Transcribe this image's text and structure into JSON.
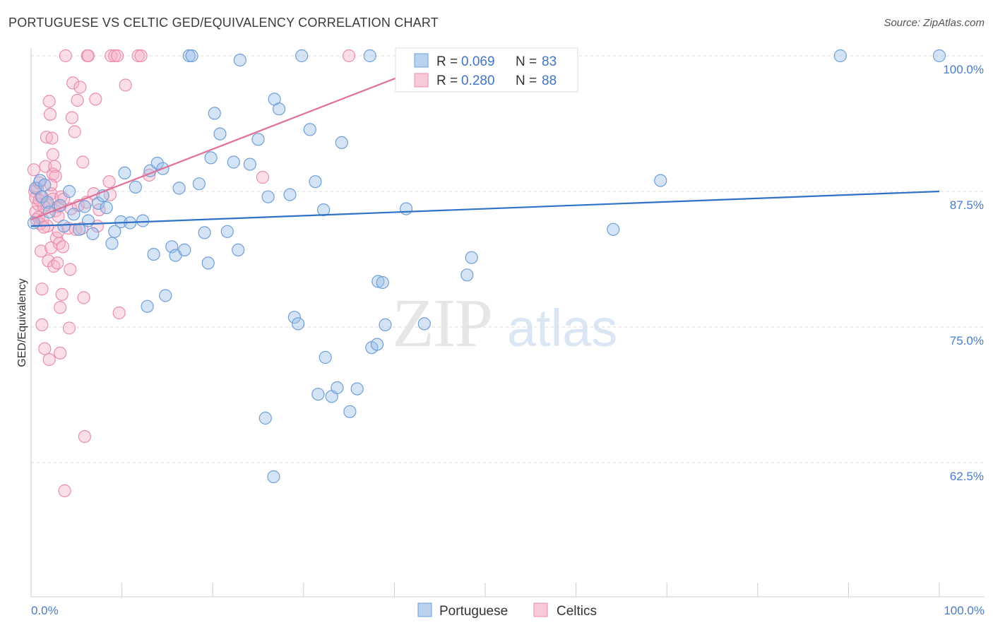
{
  "title": "PORTUGUESE VS CELTIC GED/EQUIVALENCY CORRELATION CHART",
  "source": "Source: ZipAtlas.com",
  "watermark": {
    "zip": "ZIP",
    "atlas": "atlas"
  },
  "colors": {
    "portuguese_fill": "#9bbfe8",
    "portuguese_stroke": "#6f9fd8",
    "portuguese_line": "#2f72c8",
    "celtics_fill": "#f5b2c8",
    "celtics_stroke": "#e98eae",
    "celtics_line": "#e0709a",
    "grid": "#dddddd",
    "axis_tick_text": "#4a7cc9"
  },
  "chart_data": {
    "type": "scatter",
    "title": "PORTUGUESE VS CELTIC GED/EQUIVALENCY CORRELATION CHART",
    "xlabel": "",
    "ylabel": "GED/Equivalency",
    "xlim": [
      0,
      100
    ],
    "ylim": [
      52.5,
      101.5
    ],
    "x_tick_labels": [
      "0.0%",
      "100.0%"
    ],
    "y_ticks": [
      62.5,
      75.0,
      87.5,
      100.0
    ],
    "y_tick_labels": [
      "62.5%",
      "75.0%",
      "87.5%",
      "100.0%"
    ],
    "grid": true,
    "legend": [
      {
        "name": "Portuguese",
        "r_label": "R =",
        "r": "0.069",
        "n_label": "N =",
        "n": "83"
      },
      {
        "name": "Celtics",
        "r_label": "R =",
        "r": "0.280",
        "n_label": "N =",
        "n": "88"
      }
    ],
    "series": [
      {
        "name": "Portuguese",
        "trend": {
          "x": [
            0,
            100
          ],
          "y": [
            84.3,
            87.5
          ]
        },
        "points": [
          [
            0.3,
            84.6
          ],
          [
            0.5,
            87.8
          ],
          [
            1.0,
            88.5
          ],
          [
            1.2,
            87.0
          ],
          [
            1.8,
            86.5
          ],
          [
            2.0,
            85.6
          ],
          [
            3.2,
            86.2
          ],
          [
            3.6,
            84.3
          ],
          [
            4.2,
            87.5
          ],
          [
            4.7,
            85.4
          ],
          [
            5.3,
            84.0
          ],
          [
            5.9,
            86.1
          ],
          [
            6.3,
            84.8
          ],
          [
            6.8,
            83.6
          ],
          [
            7.4,
            86.4
          ],
          [
            7.9,
            87.1
          ],
          [
            8.3,
            86.0
          ],
          [
            8.9,
            82.7
          ],
          [
            9.2,
            83.8
          ],
          [
            9.9,
            84.7
          ],
          [
            10.3,
            89.2
          ],
          [
            10.9,
            84.6
          ],
          [
            11.5,
            87.9
          ],
          [
            12.3,
            84.8
          ],
          [
            12.8,
            76.9
          ],
          [
            13.1,
            89.4
          ],
          [
            13.5,
            81.7
          ],
          [
            13.9,
            90.1
          ],
          [
            14.5,
            89.6
          ],
          [
            14.8,
            77.9
          ],
          [
            15.5,
            82.4
          ],
          [
            15.9,
            81.6
          ],
          [
            16.3,
            87.8
          ],
          [
            16.9,
            82.1
          ],
          [
            17.4,
            100.0
          ],
          [
            17.7,
            100.0
          ],
          [
            18.5,
            88.2
          ],
          [
            19.1,
            83.7
          ],
          [
            19.5,
            80.9
          ],
          [
            19.8,
            90.6
          ],
          [
            20.2,
            94.7
          ],
          [
            20.8,
            92.8
          ],
          [
            21.6,
            83.8
          ],
          [
            22.3,
            90.2
          ],
          [
            22.8,
            82.1
          ],
          [
            23.0,
            99.6
          ],
          [
            24.1,
            90.0
          ],
          [
            25.0,
            92.3
          ],
          [
            25.8,
            66.6
          ],
          [
            26.1,
            87.0
          ],
          [
            26.7,
            61.2
          ],
          [
            26.8,
            96.0
          ],
          [
            27.3,
            95.1
          ],
          [
            28.5,
            87.2
          ],
          [
            29.0,
            75.9
          ],
          [
            29.4,
            75.3
          ],
          [
            29.8,
            100.0
          ],
          [
            30.7,
            93.2
          ],
          [
            31.3,
            88.4
          ],
          [
            31.6,
            68.8
          ],
          [
            32.2,
            85.8
          ],
          [
            32.4,
            72.2
          ],
          [
            33.1,
            68.6
          ],
          [
            33.7,
            69.4
          ],
          [
            34.2,
            92.0
          ],
          [
            35.1,
            67.2
          ],
          [
            35.9,
            69.3
          ],
          [
            37.3,
            100.0
          ],
          [
            37.5,
            73.1
          ],
          [
            38.1,
            73.4
          ],
          [
            38.2,
            79.2
          ],
          [
            38.7,
            79.1
          ],
          [
            39.0,
            75.2
          ],
          [
            41.3,
            85.9
          ],
          [
            43.3,
            75.3
          ],
          [
            45.7,
            100.0
          ],
          [
            48.0,
            79.8
          ],
          [
            48.5,
            81.4
          ],
          [
            64.1,
            84.0
          ],
          [
            69.3,
            88.5
          ],
          [
            89.1,
            100.0
          ],
          [
            100.0,
            100.0
          ],
          [
            1.5,
            88.1
          ]
        ]
      },
      {
        "name": "Celtics",
        "trend": {
          "x": [
            0,
            46.5
          ],
          "y": [
            84.9,
            100.0
          ]
        },
        "points": [
          [
            0.3,
            89.5
          ],
          [
            0.4,
            87.5
          ],
          [
            0.5,
            86.9
          ],
          [
            0.5,
            85.6
          ],
          [
            0.6,
            84.9
          ],
          [
            0.7,
            87.8
          ],
          [
            0.8,
            86.3
          ],
          [
            0.8,
            85.1
          ],
          [
            0.9,
            88.3
          ],
          [
            1.0,
            84.5
          ],
          [
            1.1,
            87.0
          ],
          [
            1.1,
            82.0
          ],
          [
            1.2,
            78.5
          ],
          [
            1.2,
            75.2
          ],
          [
            1.3,
            84.9
          ],
          [
            1.4,
            86.1
          ],
          [
            1.5,
            73.0
          ],
          [
            1.6,
            89.8
          ],
          [
            1.7,
            92.5
          ],
          [
            1.7,
            86.3
          ],
          [
            1.8,
            84.3
          ],
          [
            1.9,
            81.1
          ],
          [
            2.0,
            72.0
          ],
          [
            2.0,
            95.8
          ],
          [
            2.1,
            94.6
          ],
          [
            2.2,
            87.3
          ],
          [
            2.2,
            82.3
          ],
          [
            2.3,
            92.4
          ],
          [
            2.4,
            90.9
          ],
          [
            2.4,
            89.1
          ],
          [
            2.4,
            86.8
          ],
          [
            2.5,
            80.6
          ],
          [
            2.6,
            89.8
          ],
          [
            2.7,
            88.9
          ],
          [
            2.7,
            85.7
          ],
          [
            2.8,
            83.2
          ],
          [
            2.9,
            80.9
          ],
          [
            3.0,
            86.1
          ],
          [
            3.0,
            83.8
          ],
          [
            3.1,
            82.7
          ],
          [
            3.2,
            72.6
          ],
          [
            3.2,
            76.8
          ],
          [
            3.3,
            87.0
          ],
          [
            3.4,
            78.0
          ],
          [
            3.5,
            82.4
          ],
          [
            3.6,
            86.8
          ],
          [
            3.7,
            59.9
          ],
          [
            3.8,
            100.0
          ],
          [
            4.1,
            84.1
          ],
          [
            4.2,
            74.9
          ],
          [
            4.3,
            80.3
          ],
          [
            4.4,
            85.9
          ],
          [
            4.5,
            94.3
          ],
          [
            4.6,
            97.5
          ],
          [
            4.8,
            93.0
          ],
          [
            4.9,
            84.0
          ],
          [
            5.1,
            95.9
          ],
          [
            5.2,
            86.2
          ],
          [
            5.4,
            97.1
          ],
          [
            5.6,
            84.1
          ],
          [
            5.7,
            90.2
          ],
          [
            5.8,
            77.7
          ],
          [
            5.9,
            64.9
          ],
          [
            6.1,
            86.5
          ],
          [
            6.2,
            100.0
          ],
          [
            6.3,
            100.0
          ],
          [
            6.9,
            87.3
          ],
          [
            7.1,
            96.0
          ],
          [
            7.3,
            84.3
          ],
          [
            7.5,
            85.8
          ],
          [
            8.6,
            88.4
          ],
          [
            8.7,
            87.2
          ],
          [
            8.8,
            100.0
          ],
          [
            9.2,
            100.0
          ],
          [
            9.5,
            100.0
          ],
          [
            9.7,
            76.3
          ],
          [
            10.4,
            97.3
          ],
          [
            11.8,
            100.0
          ],
          [
            12.1,
            100.0
          ],
          [
            13.0,
            89.0
          ],
          [
            25.5,
            88.8
          ],
          [
            35.0,
            100.0
          ],
          [
            44.5,
            100.0
          ],
          [
            46.7,
            100.0
          ],
          [
            0.9,
            86.7
          ],
          [
            1.4,
            84.2
          ],
          [
            2.2,
            88.1
          ],
          [
            3.0,
            85.2
          ]
        ]
      }
    ]
  }
}
